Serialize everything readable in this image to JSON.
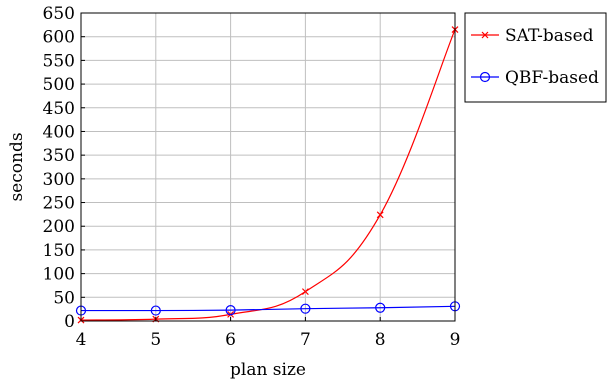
{
  "chart_data": {
    "type": "line",
    "title": "",
    "xlabel": "plan size",
    "ylabel": "seconds",
    "x": [
      4,
      5,
      6,
      7,
      8,
      9
    ],
    "xlim": [
      4,
      9
    ],
    "ylim": [
      0,
      650
    ],
    "xticks": [
      "4",
      "5",
      "6",
      "7",
      "8",
      "9"
    ],
    "yticks": [
      "0",
      "50",
      "100",
      "150",
      "200",
      "250",
      "300",
      "350",
      "400",
      "450",
      "500",
      "550",
      "600",
      "650"
    ],
    "grid": true,
    "legend_position": "outside top-right",
    "series": [
      {
        "name": "SAT-based",
        "values": [
          2,
          4,
          14,
          62,
          224,
          615
        ],
        "color": "#ff0000",
        "marker": "x"
      },
      {
        "name": "QBF-based",
        "values": [
          22,
          22,
          23,
          26,
          28,
          31
        ],
        "color": "#0000ff",
        "marker": "circle"
      }
    ]
  }
}
